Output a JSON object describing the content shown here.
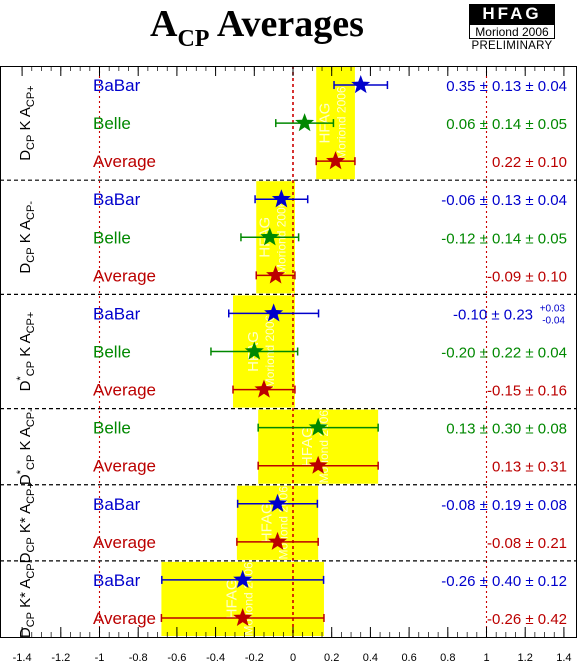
{
  "title": {
    "main": "A",
    "sub": "CP",
    "rest": " Averages"
  },
  "logo": {
    "top": "HFAG",
    "middle": "Moriond 2006",
    "bottom": "PRELIMINARY"
  },
  "colors": {
    "babar": "#0000cc",
    "belle": "#008800",
    "average": "#bb0000",
    "band": "#ffff00",
    "band_text": "#ffffcc"
  },
  "chart_data": {
    "type": "forest",
    "xlim": [
      -1.4,
      1.45
    ],
    "x_ticks": [
      -1.4,
      -1.2,
      -1,
      -0.8,
      -0.6,
      -0.4,
      -0.2,
      0,
      0.2,
      0.4,
      0.6,
      0.8,
      1,
      1.2,
      1.4
    ],
    "x_tick_labels": [
      "-1.4",
      "-1.2",
      "-1",
      "-0.8",
      "-0.6",
      "-0.4",
      "-0.2",
      "0",
      "0.2",
      "0.4",
      "0.6",
      "0.8",
      "1",
      "1.2",
      "1.4"
    ],
    "reference_lines": [
      -1,
      0,
      1
    ],
    "band_label": [
      "HFAG",
      "Moriond 2006"
    ],
    "groups": [
      {
        "label": "DCP K ACP+",
        "label_parts": [
          "D",
          "CP",
          " K A",
          "CP+"
        ],
        "rows": [
          {
            "name": "BaBar",
            "kind": "babar",
            "value": 0.35,
            "err": 0.138,
            "text": "0.35 ± 0.13 ± 0.04"
          },
          {
            "name": "Belle",
            "kind": "belle",
            "value": 0.06,
            "err": 0.149,
            "text": "0.06 ± 0.14 ± 0.05"
          },
          {
            "name": "Average",
            "kind": "average",
            "value": 0.22,
            "err": 0.1,
            "text": "0.22 ± 0.10"
          }
        ]
      },
      {
        "label": "DCP K ACP-",
        "label_parts": [
          "D",
          "CP",
          " K A",
          "CP-"
        ],
        "rows": [
          {
            "name": "BaBar",
            "kind": "babar",
            "value": -0.06,
            "err": 0.136,
            "text": "-0.06 ± 0.13 ± 0.04"
          },
          {
            "name": "Belle",
            "kind": "belle",
            "value": -0.12,
            "err": 0.149,
            "text": "-0.12 ± 0.14 ± 0.05"
          },
          {
            "name": "Average",
            "kind": "average",
            "value": -0.09,
            "err": 0.1,
            "text": "-0.09 ± 0.10"
          }
        ]
      },
      {
        "label": "D*CP K ACP+",
        "label_parts": [
          "D",
          "*",
          "CP",
          " K A",
          "CP+"
        ],
        "rows": [
          {
            "name": "BaBar",
            "kind": "babar",
            "value": -0.1,
            "err": 0.232,
            "text": "-0.10 ± 0.23",
            "sup": "+0.03",
            "sub": "-0.04"
          },
          {
            "name": "Belle",
            "kind": "belle",
            "value": -0.2,
            "err": 0.224,
            "text": "-0.20 ± 0.22 ± 0.04"
          },
          {
            "name": "Average",
            "kind": "average",
            "value": -0.15,
            "err": 0.16,
            "text": "-0.15 ± 0.16"
          }
        ]
      },
      {
        "label": "D*CP K ACP-",
        "label_parts": [
          "D",
          "*",
          "CP",
          " K A",
          "CP-"
        ],
        "rows": [
          {
            "name": "Belle",
            "kind": "belle",
            "value": 0.13,
            "err": 0.31,
            "text": "0.13 ± 0.30 ± 0.08"
          },
          {
            "name": "Average",
            "kind": "average",
            "value": 0.13,
            "err": 0.31,
            "text": "0.13 ± 0.31"
          }
        ]
      },
      {
        "label": "DCP K* ACP+",
        "label_parts": [
          "D",
          "CP",
          " K* A",
          "CP+"
        ],
        "rows": [
          {
            "name": "BaBar",
            "kind": "babar",
            "value": -0.08,
            "err": 0.206,
            "text": "-0.08 ± 0.19 ± 0.08"
          },
          {
            "name": "Average",
            "kind": "average",
            "value": -0.08,
            "err": 0.21,
            "text": "-0.08 ± 0.21"
          }
        ]
      },
      {
        "label": "DCP K* ACP-",
        "label_parts": [
          "D",
          "CP",
          " K* A",
          "CP-"
        ],
        "rows": [
          {
            "name": "BaBar",
            "kind": "babar",
            "value": -0.26,
            "err": 0.418,
            "text": "-0.26 ± 0.40 ± 0.12"
          },
          {
            "name": "Average",
            "kind": "average",
            "value": -0.26,
            "err": 0.42,
            "text": "-0.26 ± 0.42"
          }
        ]
      }
    ]
  }
}
